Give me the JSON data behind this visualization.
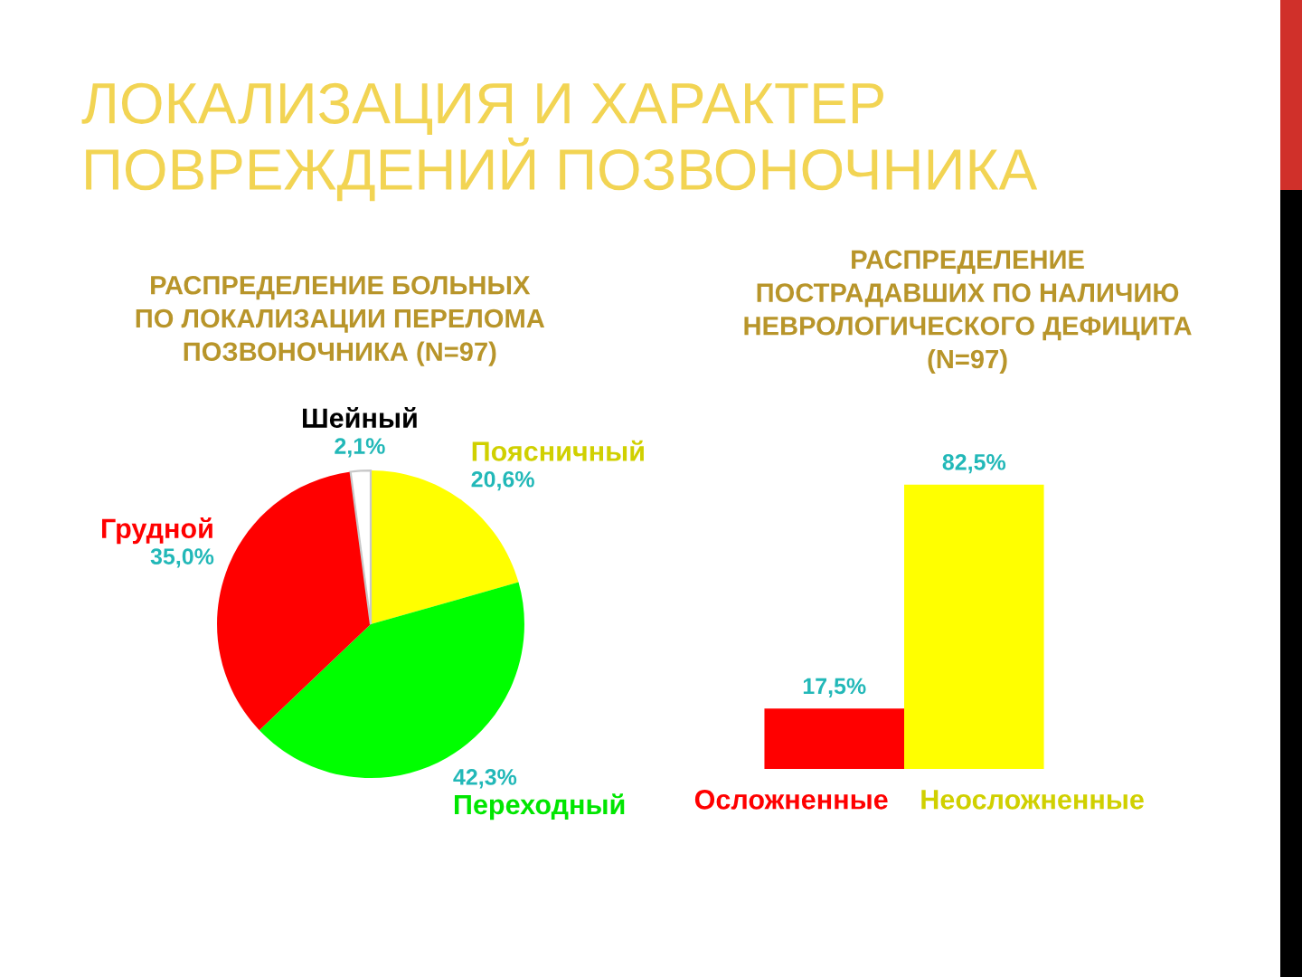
{
  "chart_data": [
    {
      "type": "other",
      "title": "ЛОКАЛИЗАЦИЯ И ХАРАКТЕР\nПОВРЕЖДЕНИЙ ПОЗВОНОЧНИКА"
    },
    {
      "type": "pie",
      "title": "РАСПРЕДЕЛЕНИЕ БОЛЬНЫХ\nПО ЛОКАЛИЗАЦИИ ПЕРЕЛОМА\nПОЗВОНОЧНИКА (N=97)",
      "categories": [
        "Поясничный",
        "Переходный",
        "Грудной",
        "Шейный"
      ],
      "values": [
        20.6,
        42.3,
        35.0,
        2.1
      ],
      "colors": [
        "#ffff00",
        "#00ff00",
        "#ff0000",
        "#ffffff"
      ],
      "value_labels": [
        "20,6%",
        "42,3%",
        "35,0%",
        "2,1%"
      ]
    },
    {
      "type": "bar",
      "title": "РАСПРЕДЕЛЕНИЕ\nПОСТРАДАВШИХ ПО НАЛИЧИЮ\nНЕВРОЛОГИЧЕСКОГО ДЕФИЦИТА\n(N=97)",
      "categories": [
        "Осложненные",
        "Неосложненные"
      ],
      "values": [
        17.5,
        82.5
      ],
      "colors": [
        "#ff0000",
        "#ffff00"
      ],
      "value_labels": [
        "17,5%",
        "82,5%"
      ],
      "tick_labels": "x"
    }
  ]
}
